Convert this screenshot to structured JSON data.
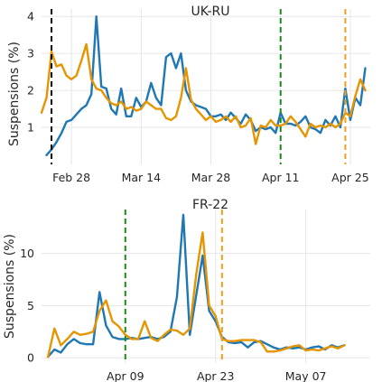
{
  "chart_data": [
    {
      "type": "line",
      "title": "UK-RU",
      "ylabel": "Suspensions (%)",
      "xlabel": "",
      "ylim": [
        0,
        4.2
      ],
      "yticks": [
        1,
        2,
        3,
        4
      ],
      "x_start": "2022-02-22",
      "x_end": "2022-04-29",
      "xticks": [
        {
          "label": "Feb 28",
          "date": "2022-02-28"
        },
        {
          "label": "Mar 14",
          "date": "2022-03-14"
        },
        {
          "label": "Mar 28",
          "date": "2022-03-28"
        },
        {
          "label": "Apr 11",
          "date": "2022-04-11"
        },
        {
          "label": "Apr 25",
          "date": "2022-04-25"
        }
      ],
      "grid": true,
      "vlines": [
        {
          "date": "2022-02-24",
          "color": "#000000"
        },
        {
          "date": "2022-04-11",
          "color": "#1a8a1a"
        },
        {
          "date": "2022-04-24",
          "color": "#f0a020"
        }
      ],
      "series": [
        {
          "color": "#1f77b4",
          "start": "2022-02-23",
          "values": [
            0.25,
            0.4,
            0.6,
            0.85,
            1.15,
            1.2,
            1.35,
            1.5,
            1.6,
            1.9,
            4.0,
            2.1,
            2.05,
            1.5,
            1.35,
            2.05,
            1.3,
            1.3,
            1.8,
            1.55,
            1.7,
            2.2,
            1.8,
            1.6,
            2.9,
            3.0,
            2.6,
            3.0,
            2.0,
            1.7,
            1.6,
            1.55,
            1.5,
            1.3,
            1.3,
            1.35,
            1.2,
            1.4,
            1.25,
            1.1,
            1.35,
            1.2,
            0.9,
            1.0,
            0.95,
            1.0,
            0.85,
            1.4,
            1.1,
            1.1,
            1.05,
            1.15,
            1.3,
            1.0,
            0.95,
            0.85,
            1.2,
            1.05,
            1.3,
            1.0,
            2.05,
            1.2,
            1.8,
            1.6,
            2.6
          ]
        },
        {
          "color": "#e69500",
          "start": "2022-02-22",
          "values": [
            1.4,
            1.8,
            3.05,
            2.65,
            2.7,
            2.4,
            2.3,
            2.4,
            2.8,
            3.25,
            2.3,
            2.05,
            2.0,
            1.8,
            1.65,
            1.6,
            1.7,
            1.5,
            1.55,
            1.45,
            1.5,
            1.7,
            1.6,
            1.5,
            1.5,
            1.25,
            1.2,
            1.3,
            1.8,
            2.6,
            1.75,
            1.5,
            1.35,
            1.2,
            1.3,
            1.15,
            1.2,
            1.3,
            1.15,
            1.3,
            1.0,
            1.05,
            1.25,
            0.55,
            1.05,
            1.0,
            1.2,
            1.05,
            1.05,
            1.1,
            1.3,
            1.15,
            0.95,
            0.75,
            1.1,
            1.0,
            1.05,
            1.0,
            1.1,
            1.0,
            1.1,
            1.4,
            1.3,
            1.85,
            2.3,
            2.0
          ]
        }
      ]
    },
    {
      "type": "line",
      "title": "FR-22",
      "ylabel": "Suspensions (%)",
      "xlabel": "",
      "ylim": [
        -0.5,
        14.2
      ],
      "yticks": [
        0,
        5,
        10
      ],
      "x_start": "2022-03-27",
      "x_end": "2022-05-17",
      "xticks": [
        {
          "label": "Apr 09",
          "date": "2022-04-09"
        },
        {
          "label": "Apr 23",
          "date": "2022-04-23"
        },
        {
          "label": "May 07",
          "date": "2022-05-07"
        }
      ],
      "grid": true,
      "vlines": [
        {
          "date": "2022-04-09",
          "color": "#1a8a1a"
        },
        {
          "date": "2022-04-24",
          "color": "#f0a020"
        }
      ],
      "series": [
        {
          "color": "#1f77b4",
          "start": "2022-03-28",
          "values": [
            0.1,
            0.8,
            0.5,
            1.3,
            1.8,
            1.4,
            1.3,
            1.3,
            6.3,
            3.1,
            2.0,
            1.8,
            1.8,
            1.9,
            1.8,
            1.9,
            2.0,
            1.8,
            2.0,
            2.5,
            5.8,
            13.7,
            2.2,
            6.0,
            9.8,
            4.5,
            3.5,
            2.0,
            1.5,
            1.4,
            1.5,
            1.0,
            1.5,
            1.6,
            1.3,
            1.0,
            0.8,
            1.0,
            0.9,
            1.0,
            0.8,
            1.0,
            1.1,
            0.8,
            1.2,
            1.0,
            1.2
          ]
        },
        {
          "color": "#e69500",
          "start": "2022-03-28",
          "values": [
            0.1,
            2.8,
            1.2,
            1.8,
            2.5,
            2.2,
            2.3,
            2.5,
            4.5,
            5.5,
            3.5,
            3.0,
            2.2,
            1.8,
            1.8,
            3.5,
            1.9,
            1.6,
            2.2,
            2.7,
            2.6,
            2.2,
            2.8,
            8.0,
            12.0,
            5.0,
            4.0,
            1.8,
            1.6,
            1.6,
            1.7,
            1.7,
            1.7,
            1.5,
            0.6,
            0.6,
            0.7,
            0.9,
            1.1,
            1.2,
            0.7,
            0.8,
            0.7,
            0.9,
            1.1,
            0.9,
            1.2
          ]
        }
      ]
    }
  ]
}
